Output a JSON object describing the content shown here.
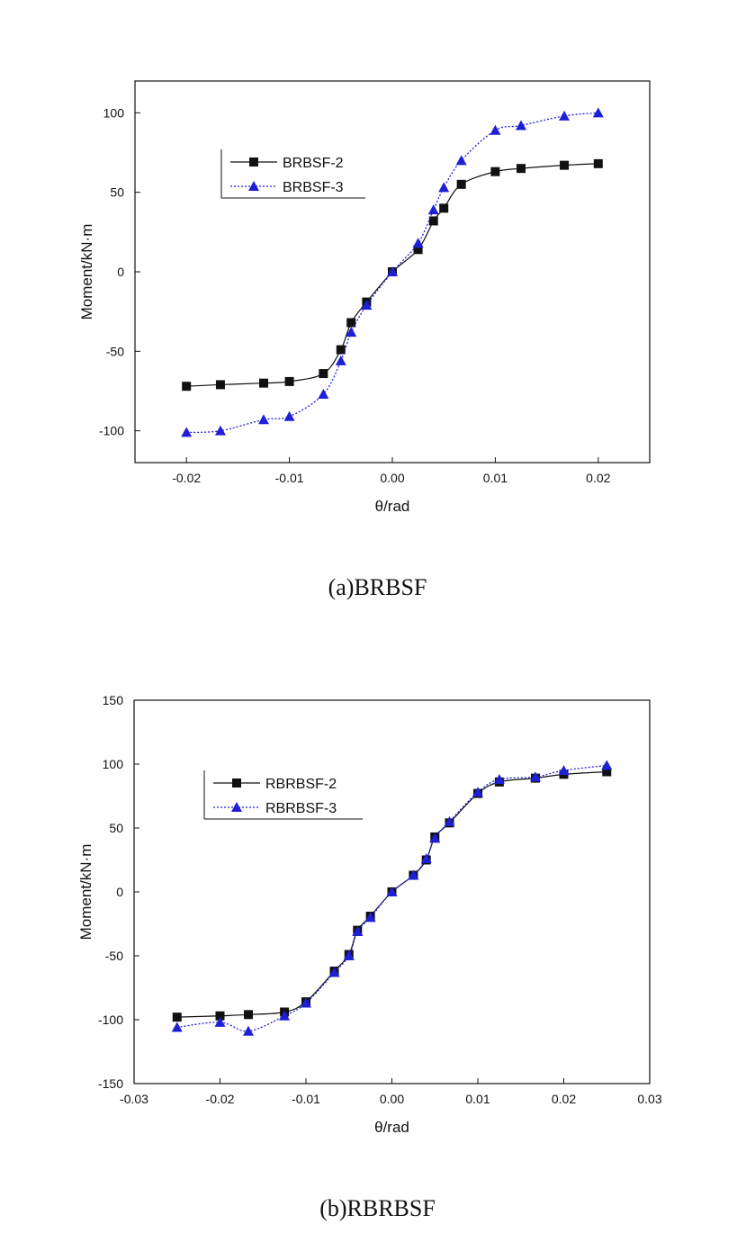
{
  "chart_data": [
    {
      "type": "line",
      "caption": "(a)BRBSF",
      "xlabel": "θ/rad",
      "ylabel": "Moment/kN·m",
      "xlim": [
        -0.025,
        0.025
      ],
      "ylim": [
        -120,
        120
      ],
      "xticks": [
        -0.02,
        -0.01,
        0.0,
        0.01,
        0.02
      ],
      "xtick_labels": [
        "-0.02",
        "-0.01",
        "0.00",
        "0.01",
        "0.02"
      ],
      "yticks": [
        -100,
        -50,
        0,
        50,
        100
      ],
      "ytick_labels": [
        "-100",
        "-50",
        "0",
        "50",
        "100"
      ],
      "legend_position": "upper-left",
      "series": [
        {
          "name": "BRBSF-2",
          "color": "#111111",
          "marker": "square",
          "line_style": "solid",
          "x": [
            -0.02,
            -0.0167,
            -0.0125,
            -0.01,
            -0.0067,
            -0.005,
            -0.004,
            -0.0025,
            0.0,
            0.0025,
            0.004,
            0.005,
            0.0067,
            0.01,
            0.0125,
            0.0167,
            0.02
          ],
          "y": [
            -72,
            -71,
            -70,
            -69,
            -64,
            -49,
            -32,
            -19,
            0,
            14,
            32,
            40,
            55,
            63,
            65,
            67,
            68
          ]
        },
        {
          "name": "BRBSF-3",
          "color": "#1f1fd6",
          "marker": "triangle",
          "line_style": "dotted",
          "x": [
            -0.02,
            -0.0167,
            -0.0125,
            -0.01,
            -0.0067,
            -0.005,
            -0.004,
            -0.0025,
            0.0,
            0.0025,
            0.004,
            0.005,
            0.0067,
            0.01,
            0.0125,
            0.0167,
            0.02
          ],
          "y": [
            -101,
            -100,
            -93,
            -91,
            -77,
            -56,
            -38,
            -21,
            0,
            18,
            39,
            53,
            70,
            89,
            92,
            98,
            100
          ]
        }
      ]
    },
    {
      "type": "line",
      "caption": "(b)RBRBSF",
      "xlabel": "θ/rad",
      "ylabel": "Moment/kN·m",
      "xlim": [
        -0.03,
        0.03
      ],
      "ylim": [
        -150,
        150
      ],
      "xticks": [
        -0.03,
        -0.02,
        -0.01,
        0.0,
        0.01,
        0.02,
        0.03
      ],
      "xtick_labels": [
        "-0.03",
        "-0.02",
        "-0.01",
        "0.00",
        "0.01",
        "0.02",
        "0.03"
      ],
      "yticks": [
        -150,
        -100,
        -50,
        0,
        50,
        100,
        150
      ],
      "ytick_labels": [
        "-150",
        "-100",
        "-50",
        "0",
        "50",
        "100",
        "150"
      ],
      "legend_position": "upper-left",
      "series": [
        {
          "name": "RBRBSF-2",
          "color": "#111111",
          "marker": "square",
          "line_style": "solid",
          "x": [
            -0.025,
            -0.02,
            -0.0167,
            -0.0125,
            -0.01,
            -0.0067,
            -0.005,
            -0.004,
            -0.0025,
            0.0,
            0.0025,
            0.004,
            0.005,
            0.0067,
            0.01,
            0.0125,
            0.0167,
            0.02,
            0.025
          ],
          "y": [
            -98,
            -97,
            -96,
            -94,
            -86,
            -62,
            -49,
            -30,
            -19,
            0,
            13,
            25,
            43,
            54,
            77,
            86,
            89,
            92,
            94
          ]
        },
        {
          "name": "RBRBSF-3",
          "color": "#1f1fd6",
          "marker": "triangle",
          "line_style": "dotted",
          "x": [
            -0.025,
            -0.02,
            -0.0167,
            -0.0125,
            -0.01,
            -0.0067,
            -0.005,
            -0.004,
            -0.0025,
            0.0,
            0.0025,
            0.004,
            0.005,
            0.0067,
            0.01,
            0.0125,
            0.0167,
            0.02,
            0.025
          ],
          "y": [
            -106,
            -102,
            -109,
            -97,
            -87,
            -63,
            -50,
            -31,
            -20,
            0,
            13,
            26,
            42,
            55,
            78,
            88,
            90,
            95,
            99
          ]
        }
      ]
    }
  ]
}
